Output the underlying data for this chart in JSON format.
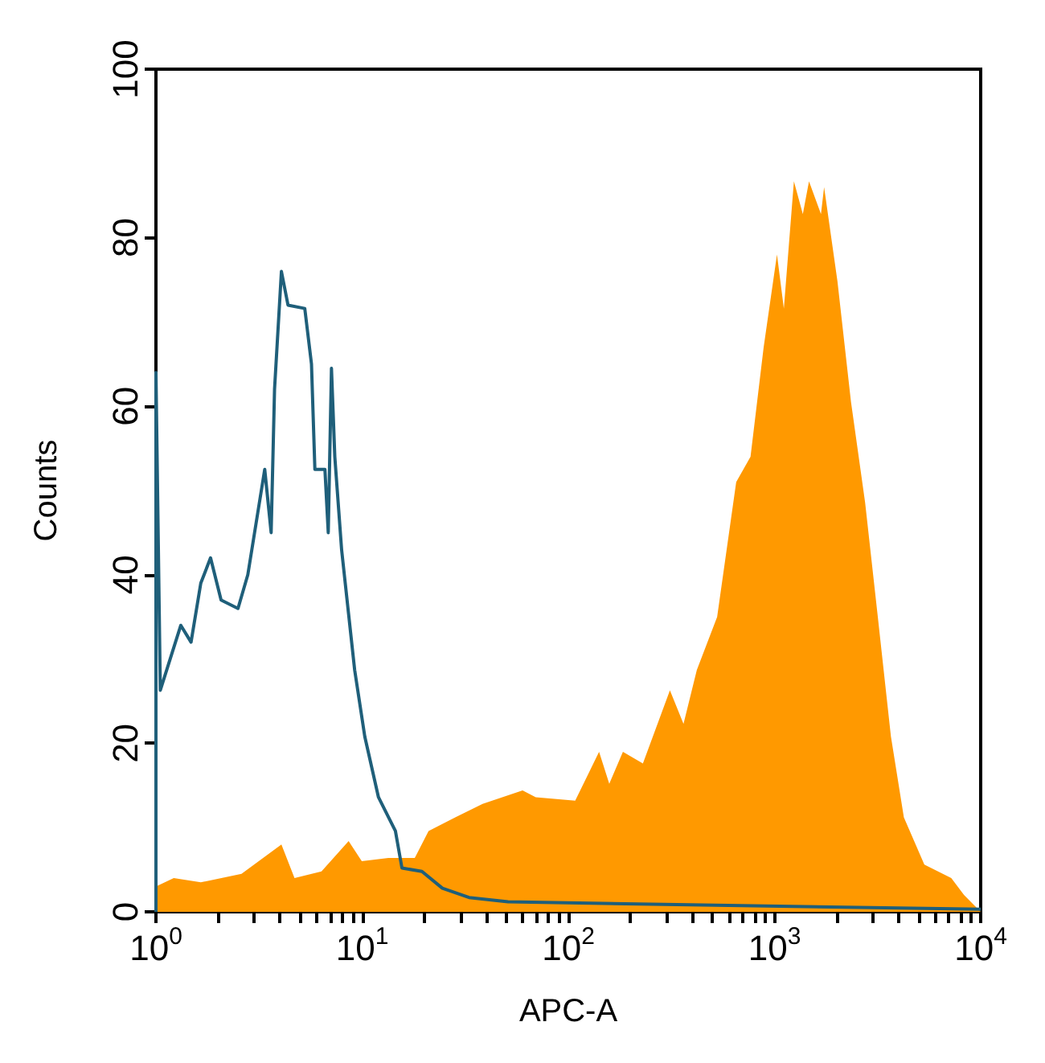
{
  "chart_data": {
    "type": "line",
    "xlabel": "APC-A",
    "ylabel": "Counts",
    "xlim": [
      1,
      10000
    ],
    "ylim": [
      0,
      100
    ],
    "xticks": [
      {
        "value": 1,
        "label": "10$^{0}$"
      },
      {
        "value": 2,
        "label": null
      },
      {
        "value": 3,
        "label": null
      },
      {
        "value": 4,
        "label": null
      },
      {
        "value": 5,
        "label": null
      },
      {
        "value": 6,
        "label": null
      },
      {
        "value": 7,
        "label": null
      },
      {
        "value": 8,
        "label": null
      },
      {
        "value": 9,
        "label": null
      },
      {
        "value": 10,
        "label": "10$^{1}$"
      },
      {
        "value": 20,
        "label": null
      },
      {
        "value": 30,
        "label": null
      },
      {
        "value": 40,
        "label": null
      },
      {
        "value": 50,
        "label": null
      },
      {
        "value": 60,
        "label": null
      },
      {
        "value": 70,
        "label": null
      },
      {
        "value": 80,
        "label": null
      },
      {
        "value": 90,
        "label": null
      },
      {
        "value": 100,
        "label": "10$^{2}$"
      },
      {
        "value": 200,
        "label": null
      },
      {
        "value": 300,
        "label": null
      },
      {
        "value": 400,
        "label": null
      },
      {
        "value": 500,
        "label": null
      },
      {
        "value": 600,
        "label": null
      },
      {
        "value": 700,
        "label": null
      },
      {
        "value": 800,
        "label": null
      },
      {
        "value": 900,
        "label": null
      },
      {
        "value": 1000,
        "label": "10$^{3}$"
      },
      {
        "value": 2000,
        "label": null
      },
      {
        "value": 3000,
        "label": null
      },
      {
        "value": 4000,
        "label": null
      },
      {
        "value": 5000,
        "label": null
      },
      {
        "value": 6000,
        "label": null
      },
      {
        "value": 7000,
        "label": null
      },
      {
        "value": 8000,
        "label": null
      },
      {
        "value": 9000,
        "label": null
      },
      {
        "value": 10000,
        "label": "10$^{4}$"
      }
    ],
    "yticks": [
      0,
      20,
      40,
      60,
      80,
      100
    ],
    "log": "x",
    "grid": false,
    "marker": "none",
    "line_style": "solid",
    "series": [
      {
        "type": "area",
        "color": "#ff9900",
        "x": [
          1,
          1.22,
          1.65,
          2.6,
          4.06,
          4.7,
          6.35,
          8.6,
          9.96,
          13.4,
          18,
          21,
          28.3,
          38.4,
          60,
          69.5,
          108,
          141,
          158,
          184,
          230,
          311,
          362,
          420,
          527,
          652,
          765,
          886,
          1028,
          1110,
          1242,
          1372,
          1470,
          1680,
          1740,
          2020,
          2350,
          2750,
          3170,
          3670,
          4240,
          5330,
          7200,
          8300,
          10000
        ],
        "values": [
          3,
          4,
          3.5,
          4.5,
          8,
          4,
          4.8,
          8.4,
          6,
          6.4,
          6.4,
          9.6,
          11.2,
          12.8,
          14.4,
          13.6,
          13.2,
          19,
          15.2,
          19,
          17.6,
          26.3,
          22.3,
          28.7,
          35,
          51,
          54,
          67,
          78,
          71.6,
          86.7,
          82.8,
          86.7,
          82.8,
          86,
          74.8,
          60.5,
          48.6,
          35,
          20.8,
          11.2,
          5.6,
          4,
          2,
          0
        ]
      },
      {
        "color": "#1f5f7a",
        "x": [
          1,
          1,
          1.05,
          1.32,
          1.48,
          1.65,
          1.84,
          2.07,
          2.5,
          2.79,
          3.37,
          3.62,
          3.76,
          4.06,
          4.37,
          5.27,
          5.68,
          5.9,
          6.6,
          6.85,
          7.1,
          7.37,
          7.95,
          9.2,
          10.3,
          12,
          14.5,
          15.6,
          19.5,
          24.5,
          33,
          51,
          147,
          10000
        ],
        "values": [
          0,
          64,
          26.3,
          34,
          32,
          39,
          42,
          37,
          36,
          40,
          52.5,
          45,
          62,
          76,
          72,
          71.6,
          65,
          52.5,
          52.5,
          45,
          64.5,
          54,
          43,
          28.7,
          20.8,
          13.6,
          9.6,
          5.2,
          4.8,
          2.8,
          1.7,
          1.2,
          1,
          0.3
        ]
      }
    ]
  }
}
